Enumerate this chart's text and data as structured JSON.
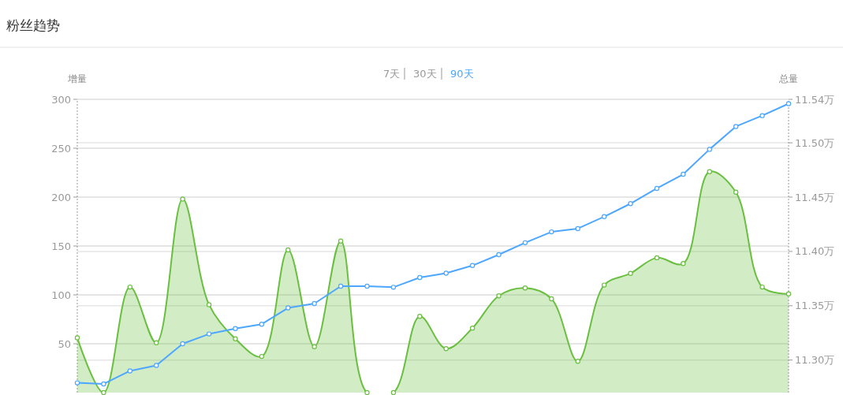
{
  "chart_data": {
    "type": "line",
    "title": "粉丝趋势",
    "annotations": [
      "7天",
      "30天",
      "90天"
    ],
    "ylabel": "增量",
    "y2label": "总量",
    "categories": [
      null,
      null,
      null,
      null,
      null,
      null,
      null,
      null,
      null,
      null,
      null,
      null,
      null,
      null,
      null,
      null,
      null,
      null,
      null,
      null,
      null,
      null,
      null,
      null,
      null,
      null,
      null,
      null
    ],
    "series": [
      {
        "type": "area",
        "color": "#6abf40",
        "values": [
          56,
          0,
          108,
          51,
          198,
          90,
          55,
          37,
          146,
          47,
          155,
          0,
          0,
          78,
          45,
          66,
          99,
          107,
          96,
          32,
          110,
          122,
          138,
          132,
          226,
          205,
          108,
          101
        ]
      },
      {
        "axis": "y2",
        "color": "#4da6ff",
        "values": [
          11.279,
          11.278,
          11.29,
          11.295,
          11.315,
          11.324,
          11.329,
          11.333,
          11.348,
          11.352,
          11.368,
          11.368,
          11.367,
          11.376,
          11.38,
          11.387,
          11.397,
          11.408,
          11.418,
          11.421,
          11.432,
          11.444,
          11.458,
          11.471,
          11.494,
          11.515,
          11.525,
          11.536
        ]
      }
    ],
    "ylim": [
      0,
      300
    ],
    "yticks": [
      50,
      100,
      150,
      200,
      250,
      300
    ],
    "y2lim": [
      11.27,
      11.54
    ],
    "y2ticks": [
      {
        "value": 11.3,
        "label": "11.30万"
      },
      {
        "value": 11.35,
        "label": "11.35万"
      },
      {
        "value": 11.4,
        "label": "11.40万"
      },
      {
        "value": 11.45,
        "label": "11.45万"
      },
      {
        "value": 11.5,
        "label": "11.50万"
      },
      {
        "value": 11.54,
        "label": "11.54万"
      }
    ],
    "grid": true,
    "marker": "circle",
    "line_style": "solid"
  }
}
